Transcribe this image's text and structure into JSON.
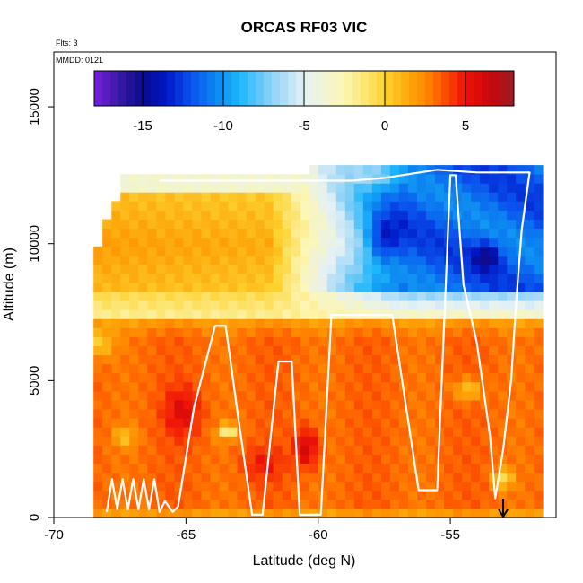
{
  "chart_data": {
    "type": "heatmap",
    "title": "ORCAS RF03 VIC",
    "note_flights": "Flts: 3",
    "note_date": "MMDD: 0121",
    "xlabel": "Latitude (deg N)",
    "ylabel": "Altitude (m)",
    "xlim": [
      -70,
      -51
    ],
    "ylim": [
      0,
      17000
    ],
    "x_ticks": [
      -70,
      -65,
      -60,
      -55
    ],
    "x_tick_labels": [
      "-70",
      "-65",
      "-60",
      "-55"
    ],
    "y_ticks": [
      0,
      5000,
      10000,
      15000
    ],
    "y_tick_labels": [
      "0",
      "5000",
      "10000",
      "15000"
    ],
    "colorbar": {
      "range": [
        -18,
        8
      ],
      "ticks": [
        -15,
        -10,
        -5,
        0,
        5
      ],
      "tick_labels": [
        "-15",
        "-10",
        "-5",
        "0",
        "5"
      ],
      "location": "top-inside"
    },
    "domain": {
      "lat_start": -68.5,
      "lat_end": -51.8,
      "alt_bottom": 0,
      "top_left_alt": 12300,
      "top_right_alt": 12800
    },
    "field_description": "Vertical profile of VIC (color value) vs latitude and altitude: warm orange/red values (0 to +6) below ~7000 m, cool blue values (-8 to -16) above ~7500 m between -59 and -52 deg N, near-zero yellow band 8000-12000 m at -68 to -61 deg N",
    "flight_track": {
      "lat": [
        -68.0,
        -67.8,
        -67.6,
        -67.4,
        -67.2,
        -67.0,
        -66.8,
        -66.6,
        -66.4,
        -66.2,
        -66.0,
        -65.8,
        -65.5,
        -65.3,
        -64.7,
        -63.9,
        -63.5,
        -63.0,
        -62.5,
        -62.1,
        -61.5,
        -61.0,
        -60.7,
        -59.9,
        -59.5,
        -58.7,
        -58.3,
        -57.2,
        -56.2,
        -55.5,
        -55.0,
        -54.8,
        -54.5,
        -54.0,
        -53.5,
        -53.3,
        -53.0,
        -52.7,
        -52.5,
        -52.3,
        -52.0,
        -54.0,
        -55.5,
        -57.5,
        -58.7,
        -60.5,
        -63.0,
        -66.0
      ],
      "alt": [
        200,
        1400,
        300,
        1400,
        300,
        1400,
        300,
        1400,
        300,
        1400,
        200,
        600,
        200,
        400,
        4000,
        7000,
        7000,
        3500,
        100,
        100,
        5700,
        5700,
        100,
        100,
        7400,
        7400,
        7400,
        7400,
        1000,
        1000,
        12500,
        12500,
        8500,
        6400,
        3000,
        700,
        2500,
        5000,
        8000,
        10500,
        12600,
        12600,
        12700,
        12400,
        12300,
        12300,
        12300,
        12300
      ]
    },
    "arrow_marker": {
      "lat": -53.0,
      "direction": "down",
      "label": ""
    }
  },
  "colors": {
    "background": "#ffffff",
    "track": "#ffffff",
    "axis": "#000000",
    "palette": [
      "#7a1fe0",
      "#3a1aa8",
      "#0a0a8c",
      "#0018c8",
      "#0a52ee",
      "#0c86f0",
      "#1cb6fc",
      "#8ed2f7",
      "#e4f1f6",
      "#fdf6b4",
      "#fdd330",
      "#fda60a",
      "#ff8a00",
      "#ff5a00",
      "#ee1108",
      "#c8060c",
      "#9a1c22"
    ],
    "palette_stops": [
      -18,
      -16.5,
      -15,
      -13.5,
      -12,
      -10.5,
      -9,
      -7,
      -5,
      -2.5,
      0,
      1.5,
      2.5,
      3.5,
      5,
      6.5,
      8
    ]
  }
}
